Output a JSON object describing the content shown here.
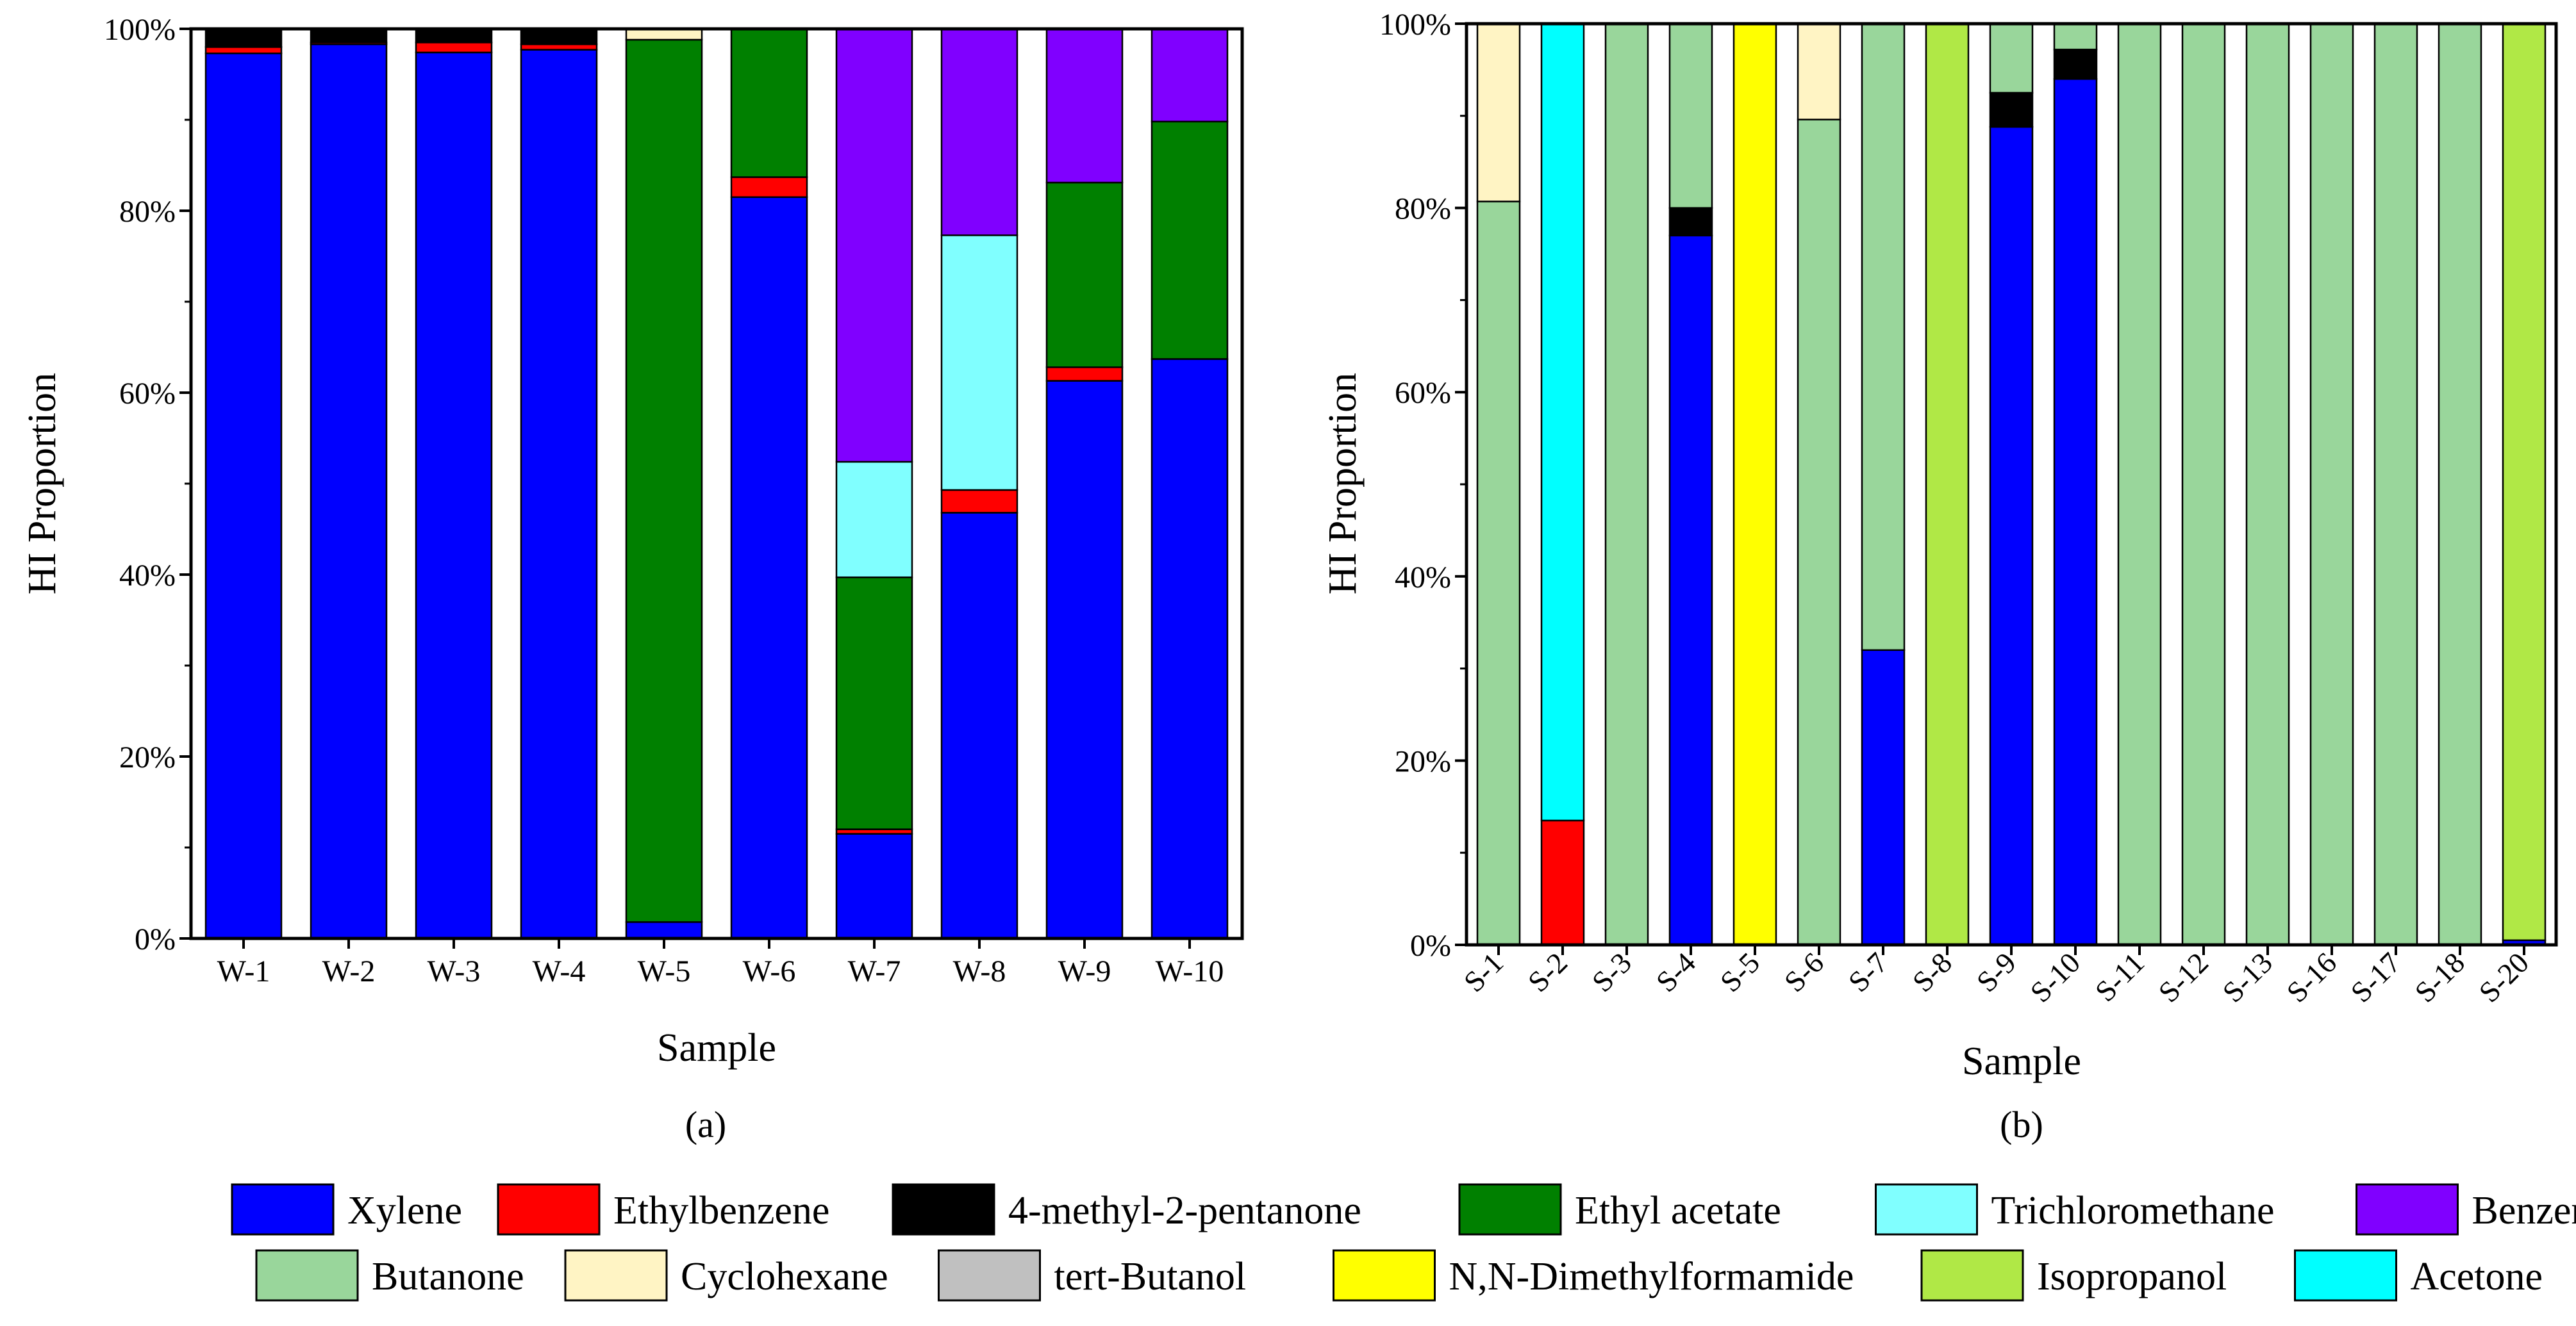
{
  "colors": {
    "Xylene": "#0000ff",
    "Ethylbenzene": "#ff0000",
    "4-methyl-2-pentanone": "#000000",
    "Ethyl acetate": "#008000",
    "Trichloromethane": "#80ffff",
    "Benzene": "#8000ff",
    "Butanone": "#99d69b",
    "Cyclohexane": "#fff4c4",
    "tert-Butanol": "#c0c0c0",
    "N,N-Dimethylformamide": "#ffff00",
    "Isopropanol": "#b0e846",
    "Acetone": "#00ffff"
  },
  "legend": {
    "rows": [
      [
        "Xylene",
        "Ethylbenzene",
        "4-methyl-2-pentanone",
        "Ethyl acetate",
        "Trichloromethane",
        "Benzene"
      ],
      [
        "Butanone",
        "Cyclohexane",
        "tert-Butanol",
        "N,N-Dimethylformamide",
        "Isopropanol",
        "Acetone"
      ]
    ]
  },
  "chart_data": [
    {
      "type": "bar",
      "stacked": true,
      "panel_label": "(a)",
      "xlabel": "Sample",
      "ylabel": "HI Proportion",
      "ylim": [
        0,
        100
      ],
      "yticks": [
        "0%",
        "20%",
        "40%",
        "60%",
        "80%",
        "100%"
      ],
      "categories": [
        "W-1",
        "W-2",
        "W-3",
        "W-4",
        "W-5",
        "W-6",
        "W-7",
        "W-8",
        "W-9",
        "W-10"
      ],
      "series": [
        {
          "name": "Xylene",
          "values": [
            97.3,
            98.3,
            97.4,
            97.7,
            1.8,
            81.5,
            11.5,
            46.8,
            61.3,
            63.7
          ]
        },
        {
          "name": "Ethylbenzene",
          "values": [
            0.7,
            0.2,
            1.1,
            0.6,
            0,
            2.2,
            0.5,
            2.5,
            1.5,
            0
          ]
        },
        {
          "name": "4-methyl-2-pentanone",
          "values": [
            2.0,
            1.5,
            1.5,
            1.7,
            0,
            0,
            0,
            0,
            0,
            0
          ]
        },
        {
          "name": "Ethyl acetate",
          "values": [
            0,
            0,
            0,
            0,
            97.0,
            16.3,
            27.7,
            0,
            20.3,
            26.1
          ]
        },
        {
          "name": "Trichloromethane",
          "values": [
            0,
            0,
            0,
            0,
            0,
            0,
            12.7,
            28.0,
            0,
            0
          ]
        },
        {
          "name": "Benzene",
          "values": [
            0,
            0,
            0,
            0,
            0,
            0,
            47.6,
            22.7,
            16.9,
            10.2
          ]
        },
        {
          "name": "Butanone",
          "values": [
            0,
            0,
            0,
            0,
            0,
            0,
            0,
            0,
            0,
            0
          ]
        },
        {
          "name": "Cyclohexane",
          "values": [
            0,
            0,
            0,
            0,
            1.2,
            0,
            0,
            0,
            0,
            0
          ]
        },
        {
          "name": "tert-Butanol",
          "values": [
            0,
            0,
            0,
            0,
            0,
            0,
            0,
            0,
            0,
            0
          ]
        },
        {
          "name": "N,N-Dimethylformamide",
          "values": [
            0,
            0,
            0,
            0,
            0,
            0,
            0,
            0,
            0,
            0
          ]
        },
        {
          "name": "Isopropanol",
          "values": [
            0,
            0,
            0,
            0,
            0,
            0,
            0,
            0,
            0,
            0
          ]
        },
        {
          "name": "Acetone",
          "values": [
            0,
            0,
            0,
            0,
            0,
            0,
            0,
            0,
            0,
            0
          ]
        }
      ]
    },
    {
      "type": "bar",
      "stacked": true,
      "panel_label": "(b)",
      "xlabel": "Sample",
      "ylabel": "HI Proportion",
      "ylim": [
        0,
        100
      ],
      "yticks": [
        "0%",
        "20%",
        "40%",
        "60%",
        "80%",
        "100%"
      ],
      "categories": [
        "S-1",
        "S-2",
        "S-3",
        "S-4",
        "S-5",
        "S-6",
        "S-7",
        "S-8",
        "S-9",
        "S-10",
        "S-11",
        "S-12",
        "S-13",
        "S-16",
        "S-17",
        "S-18",
        "S-20"
      ],
      "series": [
        {
          "name": "Xylene",
          "values": [
            0,
            0,
            0,
            77.0,
            0,
            0,
            32.0,
            0,
            88.8,
            94.0,
            0,
            0,
            0,
            0,
            0,
            0,
            0.5
          ]
        },
        {
          "name": "Ethylbenzene",
          "values": [
            0,
            13.5,
            0,
            0,
            0,
            0,
            0,
            0,
            0,
            0,
            0,
            0,
            0,
            0,
            0,
            0,
            0
          ]
        },
        {
          "name": "4-methyl-2-pentanone",
          "values": [
            0,
            0,
            0,
            3.0,
            0,
            0,
            0,
            0,
            3.7,
            3.2,
            0,
            0,
            0,
            0,
            0,
            0,
            0
          ]
        },
        {
          "name": "Ethyl acetate",
          "values": [
            0,
            0,
            0,
            0,
            0,
            0,
            0,
            0,
            0,
            0,
            0,
            0,
            0,
            0,
            0,
            0,
            0
          ]
        },
        {
          "name": "Trichloromethane",
          "values": [
            0,
            0,
            0,
            0,
            0,
            0,
            0,
            0,
            0,
            0,
            0,
            0,
            0,
            0,
            0,
            0,
            0
          ]
        },
        {
          "name": "Benzene",
          "values": [
            0,
            0,
            0,
            0,
            0,
            0,
            0,
            0,
            0,
            0,
            0,
            0,
            0,
            0,
            0,
            0,
            0
          ]
        },
        {
          "name": "Butanone",
          "values": [
            80.7,
            0,
            100,
            20.0,
            0,
            89.6,
            68.0,
            0,
            7.5,
            2.8,
            100,
            100,
            100,
            100,
            100,
            100,
            0
          ]
        },
        {
          "name": "Cyclohexane",
          "values": [
            19.3,
            0,
            0,
            0,
            0,
            10.4,
            0,
            0,
            0,
            0,
            0,
            0,
            0,
            0,
            0,
            0,
            0
          ]
        },
        {
          "name": "tert-Butanol",
          "values": [
            0,
            0,
            0,
            0,
            0,
            0,
            0,
            0,
            0,
            0,
            0,
            0,
            0,
            0,
            0,
            0,
            0
          ]
        },
        {
          "name": "N,N-Dimethylformamide",
          "values": [
            0,
            0,
            0,
            0,
            100,
            0,
            0,
            0,
            0,
            0,
            0,
            0,
            0,
            0,
            0,
            0,
            0
          ]
        },
        {
          "name": "Isopropanol",
          "values": [
            0,
            0,
            0,
            0,
            0,
            0,
            0,
            100,
            0,
            0,
            0,
            0,
            0,
            0,
            0,
            0,
            99.5
          ]
        },
        {
          "name": "Acetone",
          "values": [
            0,
            86.5,
            0,
            0,
            0,
            0,
            0,
            0,
            0,
            0,
            0,
            0,
            0,
            0,
            0,
            0,
            0
          ]
        }
      ]
    }
  ]
}
